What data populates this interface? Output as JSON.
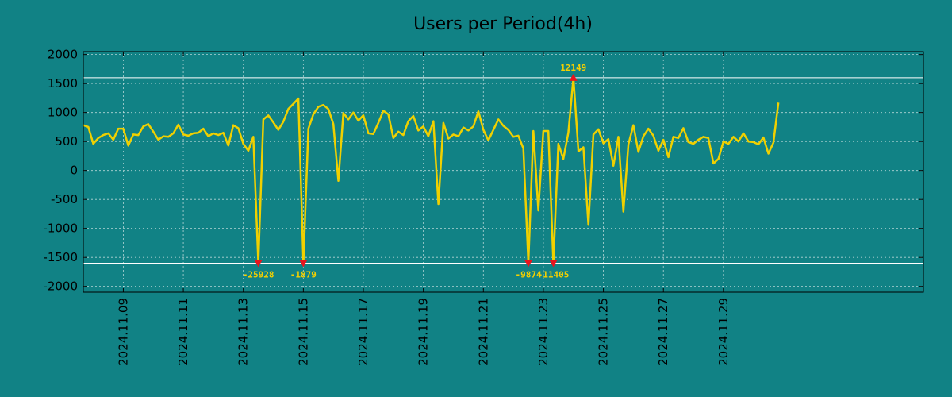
{
  "chart_data": {
    "type": "line",
    "title": "Users per Period(4h)",
    "xlabel": "",
    "ylabel": "",
    "ylim": [
      -2100,
      2050
    ],
    "xlim": [
      0,
      168
    ],
    "y_ticks": [
      2000,
      1500,
      1000,
      500,
      0,
      -500,
      -1000,
      -1500,
      -2000
    ],
    "x_ticks": [
      {
        "pos": 8,
        "label": "2024.11.09"
      },
      {
        "pos": 20,
        "label": "2024.11.11"
      },
      {
        "pos": 32,
        "label": "2024.11.13"
      },
      {
        "pos": 44,
        "label": "2024.11.15"
      },
      {
        "pos": 56,
        "label": "2024.11.17"
      },
      {
        "pos": 68,
        "label": "2024.11.19"
      },
      {
        "pos": 80,
        "label": "2024.11.21"
      },
      {
        "pos": 92,
        "label": "2024.11.23"
      },
      {
        "pos": 104,
        "label": "2024.11.25"
      },
      {
        "pos": 116,
        "label": "2024.11.27"
      },
      {
        "pos": 128,
        "label": "2024.11.29"
      }
    ],
    "clip_lines": [
      1600,
      -1600
    ],
    "series": [
      {
        "name": "Users per Period(4h)",
        "color": "#f0d000",
        "values": [
          780,
          750,
          460,
          560,
          610,
          640,
          530,
          720,
          720,
          430,
          620,
          610,
          760,
          800,
          670,
          530,
          590,
          580,
          640,
          790,
          620,
          600,
          640,
          650,
          720,
          590,
          640,
          610,
          650,
          430,
          780,
          730,
          460,
          340,
          580,
          -1600,
          880,
          950,
          830,
          700,
          840,
          1060,
          1150,
          1240,
          -1600,
          720,
          970,
          1100,
          1130,
          1060,
          800,
          -180,
          990,
          880,
          1000,
          860,
          950,
          640,
          630,
          820,
          1030,
          970,
          560,
          670,
          610,
          850,
          940,
          690,
          760,
          590,
          850,
          -580,
          820,
          550,
          620,
          590,
          740,
          690,
          760,
          1020,
          700,
          520,
          700,
          880,
          770,
          700,
          580,
          600,
          380,
          -1600,
          680,
          -690,
          680,
          680,
          -1600,
          460,
          200,
          650,
          1600,
          330,
          400,
          -940,
          620,
          710,
          470,
          540,
          80,
          580,
          -710,
          450,
          780,
          320,
          590,
          720,
          600,
          340,
          530,
          230,
          580,
          560,
          730,
          490,
          460,
          530,
          580,
          560,
          120,
          200,
          500,
          460,
          580,
          500,
          640,
          500,
          490,
          450,
          570,
          290,
          480,
          1170
        ]
      }
    ],
    "annotations": [
      {
        "x": 35,
        "y": -1600,
        "label": "-25928",
        "marker": "triangle-down"
      },
      {
        "x": 44,
        "y": -1600,
        "label": "-1879",
        "marker": "triangle-down"
      },
      {
        "x": 89,
        "y": -1600,
        "label": "-9874",
        "marker": "triangle-down"
      },
      {
        "x": 94,
        "y": -1600,
        "label": "-11405",
        "marker": "triangle-down"
      },
      {
        "x": 98,
        "y": 1600,
        "label": "12149",
        "marker": "triangle-up"
      }
    ],
    "grid": true,
    "colors": {
      "background": "#118285",
      "line": "#f0d000",
      "marker": "#e8141e",
      "annotation": "#f5d000",
      "grid": "#cfe3e3"
    }
  }
}
